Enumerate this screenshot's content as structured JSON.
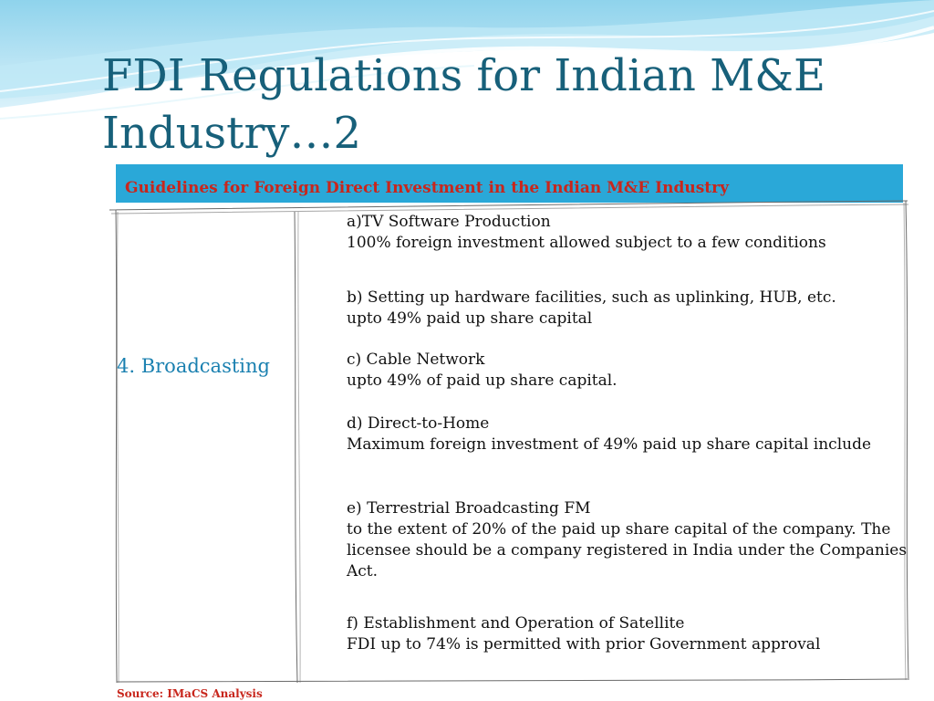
{
  "slide": {
    "title": "FDI Regulations for Indian M&E Industry…2",
    "banner": "Guidelines for Foreign Direct Investment in the Indian M&E Industry",
    "sector": "4. Broadcasting",
    "guidelines": [
      {
        "head": "a)TV Software Production",
        "body": "100% foreign investment allowed subject to a few conditions"
      },
      {
        "head": "b) Setting up hardware facilities, such as uplinking, HUB, etc.",
        "body": "upto 49% paid up share capital"
      },
      {
        "head": "c) Cable Network",
        "body": "upto 49% of paid up share capital."
      },
      {
        "head": "d) Direct-to-Home",
        "body": "Maximum foreign investment of 49% paid up share capital include"
      },
      {
        "head": "e) Terrestrial Broadcasting FM",
        "body": "to the extent of 20%  of the paid up share capital of the company. The licensee should be a company registered in India under the Companies Act."
      },
      {
        "head": "f) Establishment and Operation of Satellite",
        "body": "FDI up to 74% is permitted with prior Government approval"
      }
    ],
    "source": "Source: IMaCS Analysis"
  },
  "colors": {
    "title": "#17607a",
    "banner_bg": "#2aa8d8",
    "banner_text": "#c8261c",
    "sector_text": "#1a80b0",
    "body_text": "#111111",
    "source_text": "#c8261c"
  }
}
